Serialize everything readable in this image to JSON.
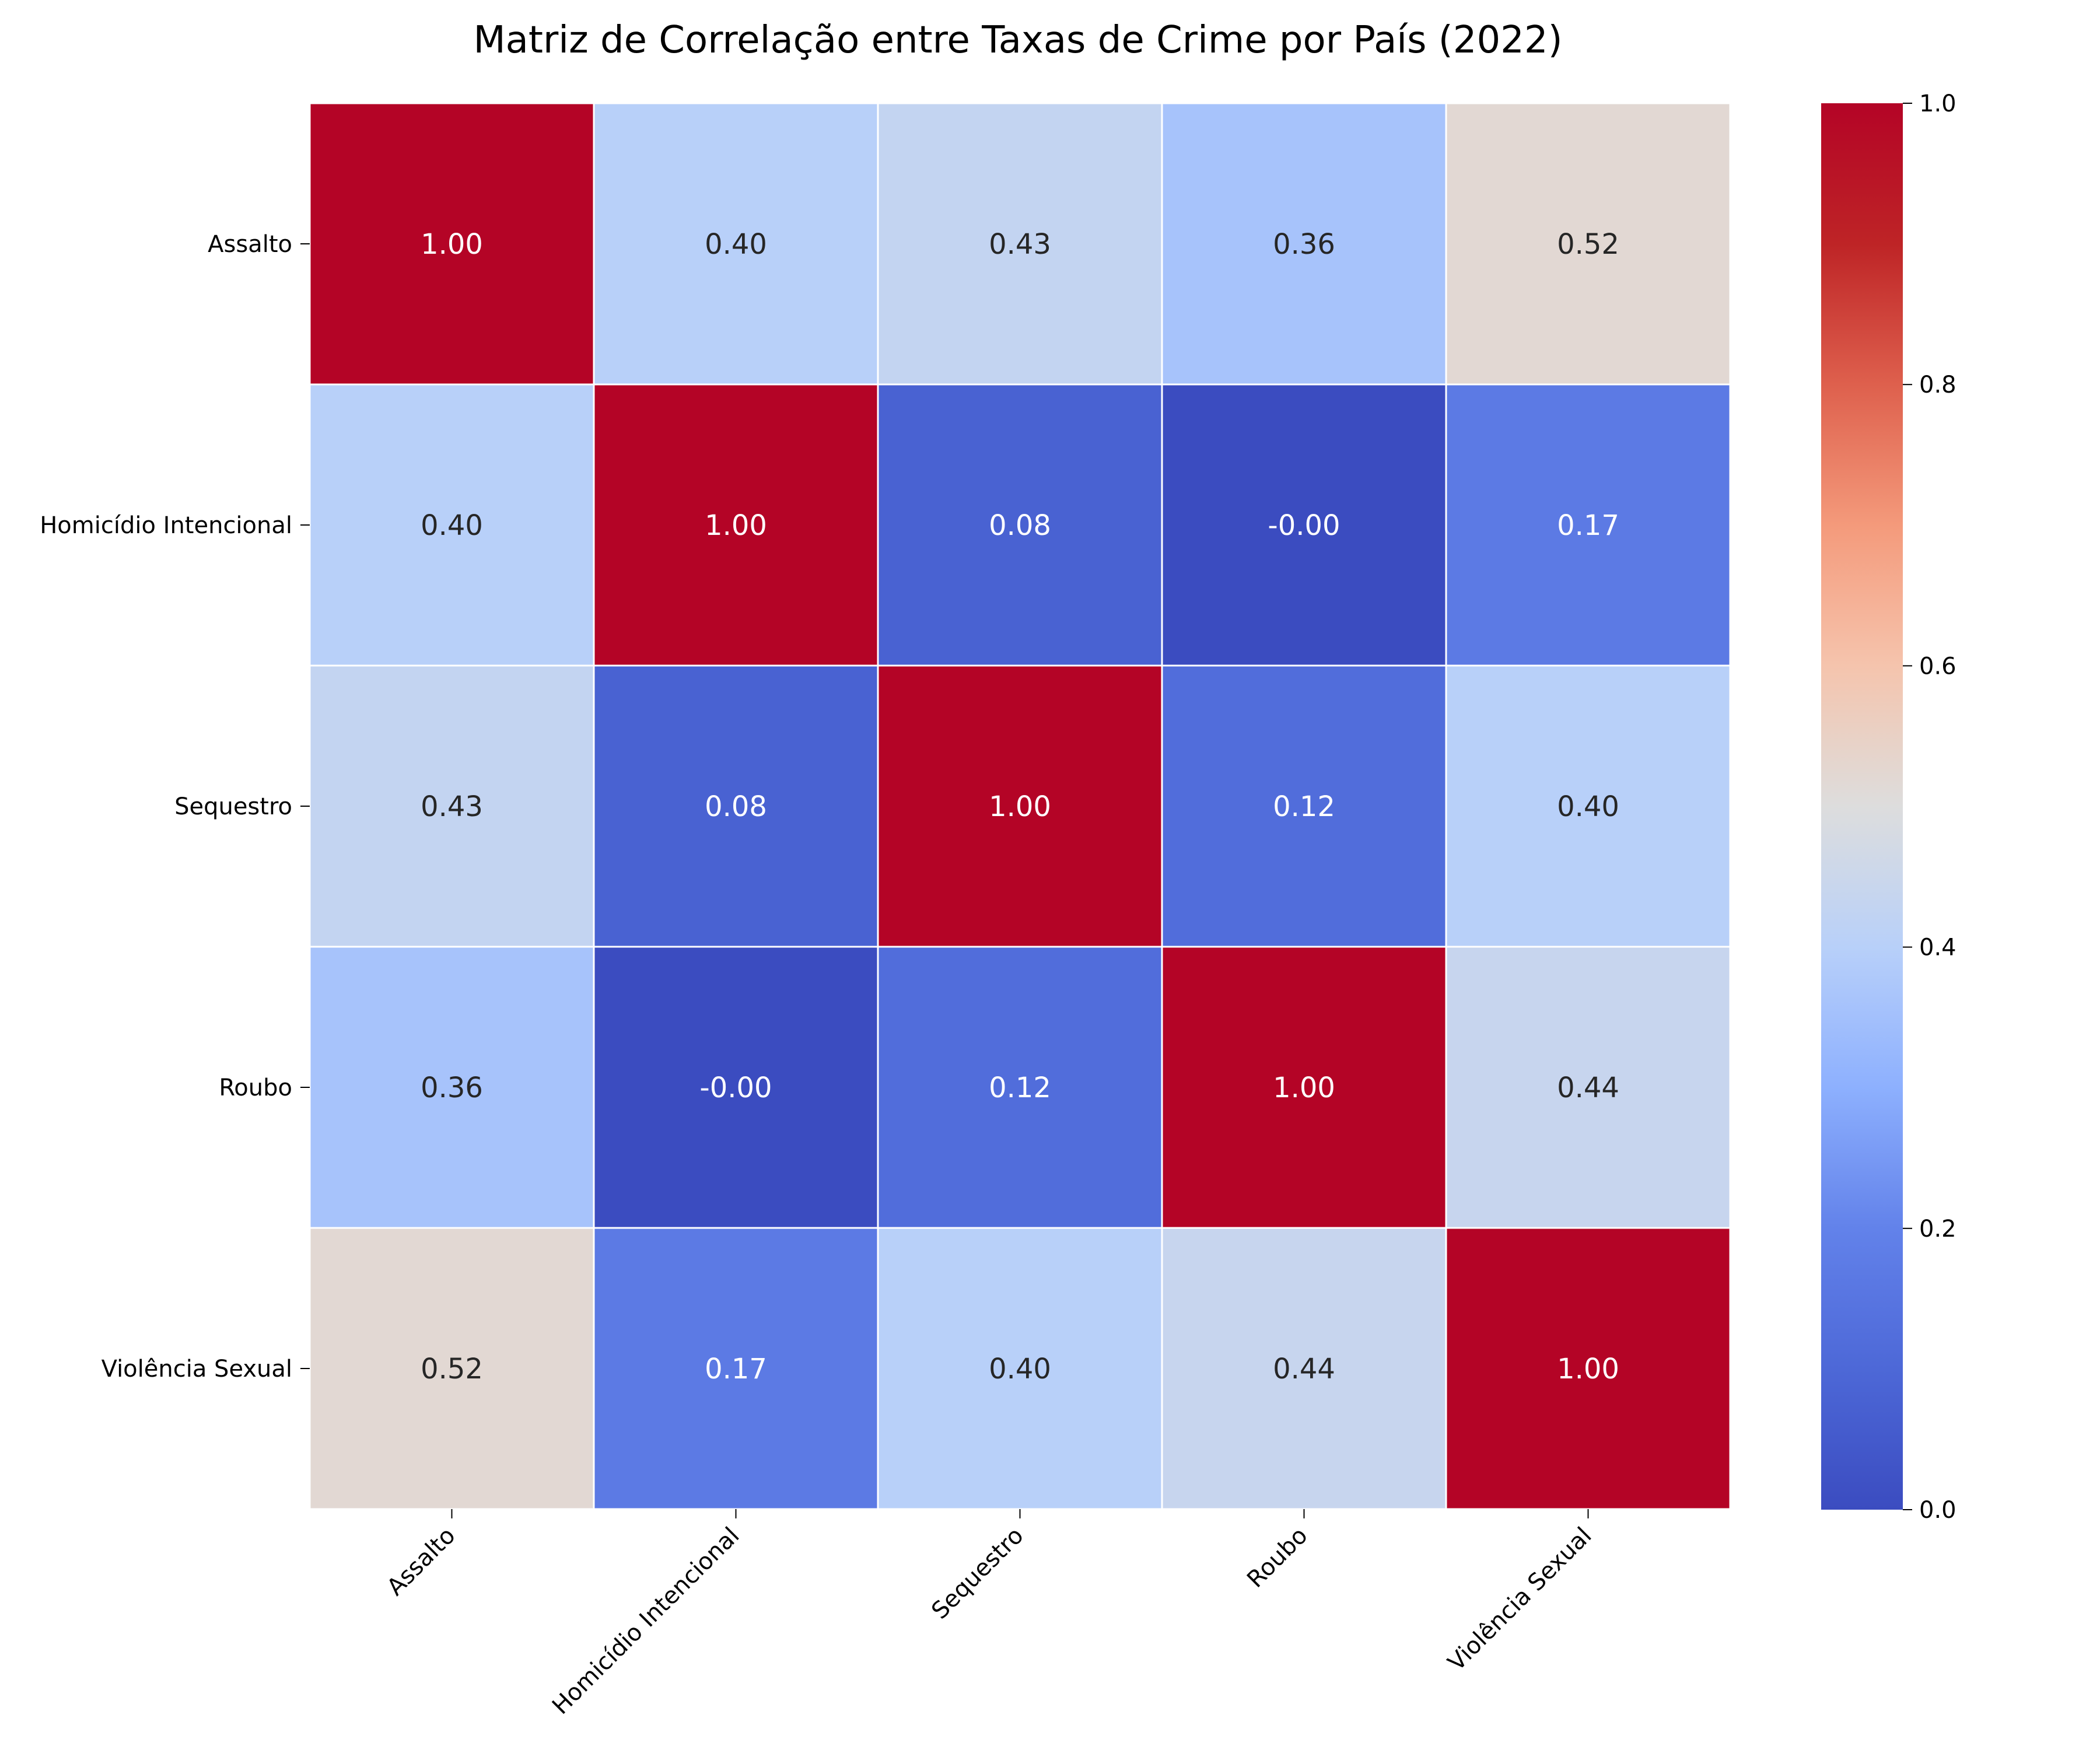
{
  "chart_data": {
    "type": "heatmap",
    "title": "Matriz de Correlação entre Taxas de Crime por País (2022)",
    "xlabel": "",
    "ylabel": "",
    "rows": [
      "Assalto",
      "Homicídio Intencional",
      "Sequestro",
      "Roubo",
      "Violência Sexual"
    ],
    "columns": [
      "Assalto",
      "Homicídio Intencional",
      "Sequestro",
      "Roubo",
      "Violência Sexual"
    ],
    "values": [
      [
        1.0,
        0.4,
        0.43,
        0.36,
        0.52
      ],
      [
        0.4,
        1.0,
        0.08,
        -0.0001,
        0.17
      ],
      [
        0.43,
        0.08,
        1.0,
        0.12,
        0.4
      ],
      [
        0.36,
        -0.0001,
        0.12,
        1.0,
        0.44
      ],
      [
        0.52,
        0.17,
        0.4,
        0.44,
        1.0
      ]
    ],
    "cell_labels": [
      [
        "1.00",
        "0.40",
        "0.43",
        "0.36",
        "0.52"
      ],
      [
        "0.40",
        "1.00",
        "0.08",
        "-0.00",
        "0.17"
      ],
      [
        "0.43",
        "0.08",
        "1.00",
        "0.12",
        "0.40"
      ],
      [
        "0.36",
        "-0.00",
        "0.12",
        "1.00",
        "0.44"
      ],
      [
        "0.52",
        "0.17",
        "0.40",
        "0.44",
        "1.00"
      ]
    ],
    "colorscale": "coolwarm",
    "vmin": 0.0,
    "vmax": 1.0,
    "colorbar_ticks": [
      "0.0",
      "0.2",
      "0.4",
      "0.6",
      "0.8",
      "1.0"
    ],
    "colorbar_tick_values": [
      0.0,
      0.2,
      0.4,
      0.6,
      0.8,
      1.0
    ]
  }
}
